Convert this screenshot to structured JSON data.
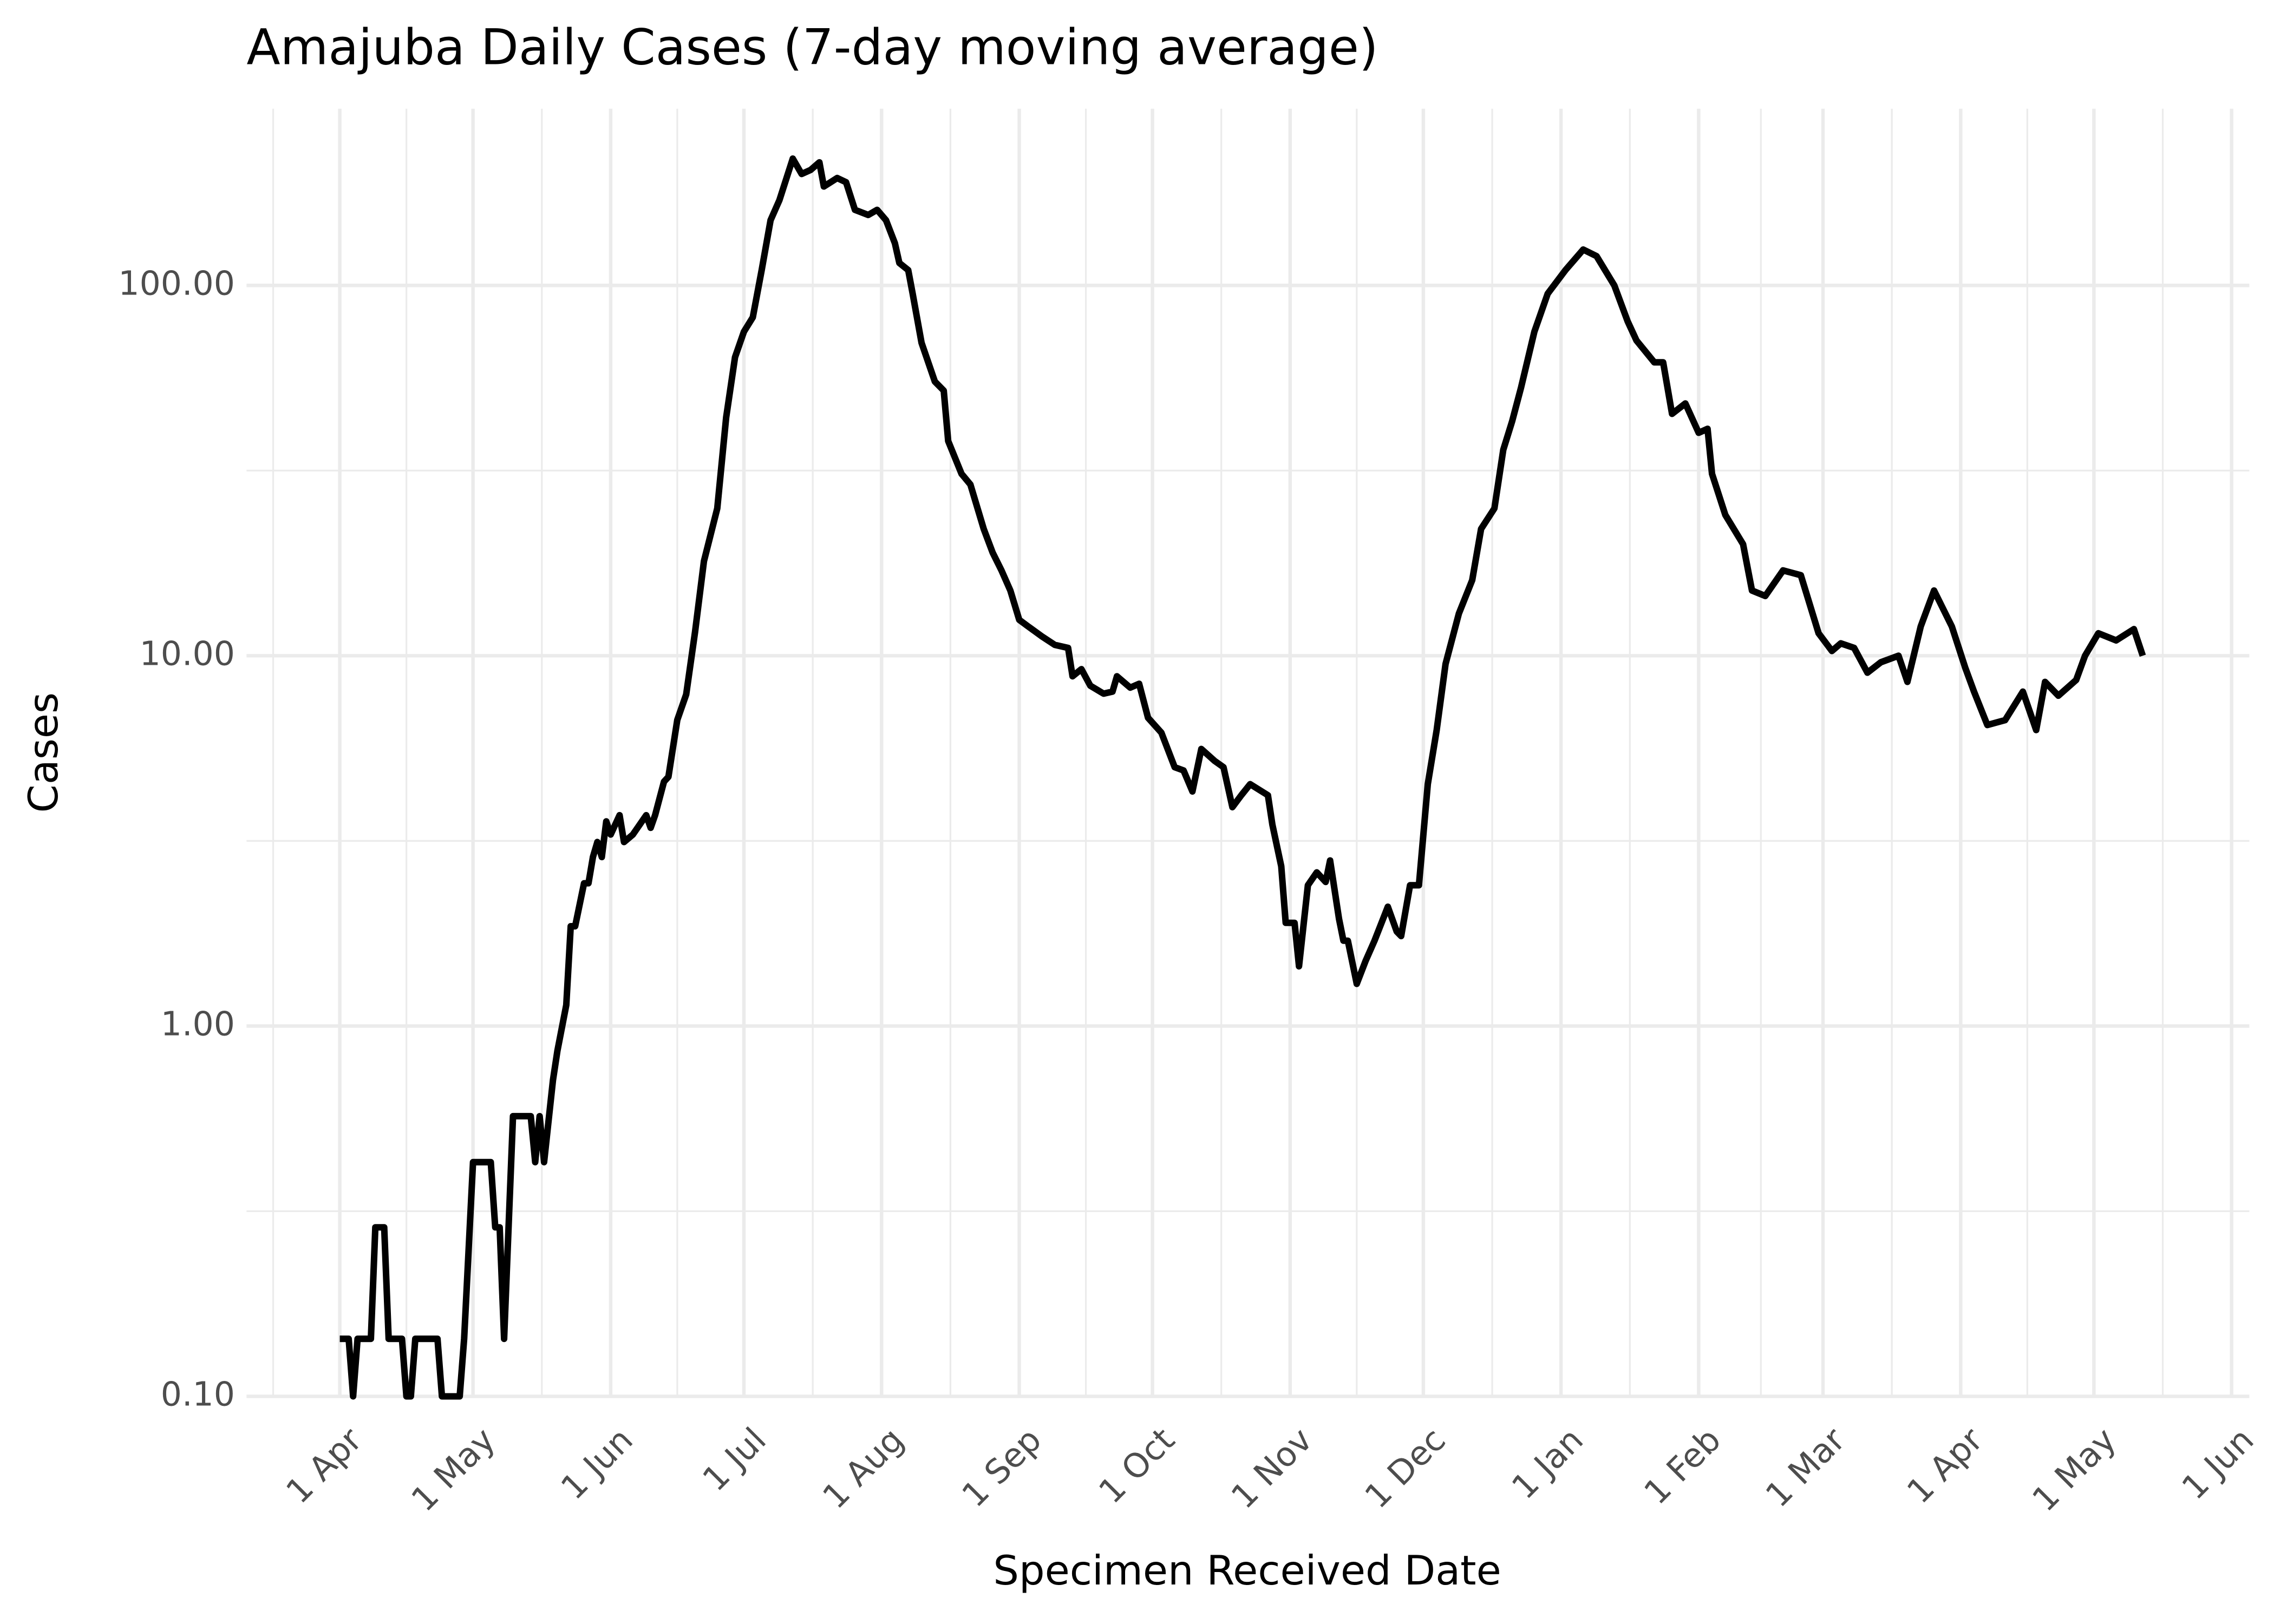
{
  "chart_data": {
    "type": "line",
    "title": "Amajuba Daily Cases (7-day moving average)",
    "x_label": "Specimen Received Date",
    "y_label": "Cases",
    "log_y": true,
    "grid": true,
    "color": "#000000",
    "xlim": [
      -21,
      430
    ],
    "ylim": [
      0.1,
      300
    ],
    "xticks": [
      {
        "value": 0,
        "label": "1 Apr"
      },
      {
        "value": 30,
        "label": "1 May"
      },
      {
        "value": 61,
        "label": "1 Jun"
      },
      {
        "value": 91,
        "label": "1 Jul"
      },
      {
        "value": 122,
        "label": "1 Aug"
      },
      {
        "value": 153,
        "label": "1 Sep"
      },
      {
        "value": 183,
        "label": "1 Oct"
      },
      {
        "value": 214,
        "label": "1 Nov"
      },
      {
        "value": 244,
        "label": "1 Dec"
      },
      {
        "value": 275,
        "label": "1 Jan"
      },
      {
        "value": 306,
        "label": "1 Feb"
      },
      {
        "value": 334,
        "label": "1 Mar"
      },
      {
        "value": 365,
        "label": "1 Apr"
      },
      {
        "value": 395,
        "label": "1 May"
      },
      {
        "value": 426,
        "label": "1 Jun"
      }
    ],
    "yticks": [
      {
        "value": 0.1,
        "label": "0.10"
      },
      {
        "value": 1,
        "label": "1.00"
      },
      {
        "value": 10,
        "label": "10.00"
      },
      {
        "value": 100,
        "label": "100.00"
      }
    ],
    "x": [
      0,
      2,
      3,
      4,
      7,
      8,
      10,
      11,
      14,
      15,
      16,
      17,
      22,
      23,
      27,
      28,
      30,
      34,
      35,
      36,
      37,
      39,
      43,
      44,
      45,
      46,
      48,
      49,
      51,
      52,
      53,
      55,
      56,
      57,
      58,
      59,
      60,
      61,
      63,
      64,
      66,
      69,
      70,
      71,
      73,
      74,
      76,
      78,
      80,
      82,
      85,
      87,
      89,
      91,
      93,
      95,
      97,
      99,
      102,
      104,
      106,
      108,
      109,
      112,
      114,
      116,
      119,
      121,
      123,
      125,
      126,
      128,
      129,
      131,
      134,
      136,
      137,
      140,
      142,
      145,
      147,
      149,
      151,
      153,
      155,
      158,
      161,
      164,
      165,
      167,
      169,
      172,
      174,
      175,
      178,
      180,
      182,
      185,
      188,
      190,
      192,
      194,
      197,
      199,
      201,
      203,
      205,
      209,
      210,
      212,
      213,
      215,
      216,
      218,
      220,
      222,
      223,
      225,
      226,
      227,
      229,
      231,
      233,
      236,
      238,
      239,
      241,
      243,
      245,
      247,
      249,
      252,
      255,
      257,
      260,
      262,
      264,
      266,
      269,
      272,
      276,
      280,
      283,
      287,
      290,
      292,
      296,
      298,
      300,
      303,
      306,
      308,
      309,
      312,
      316,
      318,
      321,
      325,
      329,
      333,
      336,
      338,
      341,
      344,
      347,
      351,
      353,
      356,
      359,
      363,
      366,
      368,
      371,
      375,
      379,
      382,
      384,
      387,
      391,
      393,
      396,
      400,
      404,
      406
    ],
    "values": [
      0.143,
      0.143,
      0.1,
      0.143,
      0.143,
      0.286,
      0.286,
      0.143,
      0.143,
      0.1,
      0.1,
      0.143,
      0.143,
      0.1,
      0.1,
      0.143,
      0.429,
      0.429,
      0.286,
      0.286,
      0.143,
      0.571,
      0.571,
      0.429,
      0.571,
      0.429,
      0.714,
      0.857,
      1.14,
      1.86,
      1.86,
      2.43,
      2.43,
      2.86,
      3.14,
      2.86,
      3.57,
      3.29,
      3.71,
      3.14,
      3.29,
      3.71,
      3.43,
      3.71,
      4.57,
      4.71,
      6.71,
      7.86,
      11.6,
      18,
      25,
      44,
      64,
      75,
      82,
      110,
      150,
      170,
      220,
      200,
      205,
      215,
      185,
      195,
      190,
      160,
      155,
      160,
      150,
      130,
      115,
      110,
      95,
      70,
      55,
      52,
      38,
      31,
      29,
      22,
      19,
      17,
      15,
      12.5,
      12,
      11.3,
      10.7,
      10.5,
      8.8,
      9.2,
      8.3,
      7.9,
      8,
      8.8,
      8.2,
      8.4,
      6.8,
      6.2,
      5,
      4.9,
      4.3,
      5.6,
      5.2,
      5,
      3.9,
      4.2,
      4.5,
      4.2,
      3.5,
      2.7,
      1.9,
      1.9,
      1.45,
      2.4,
      2.6,
      2.45,
      2.8,
      1.95,
      1.7,
      1.7,
      1.3,
      1.5,
      1.7,
      2.1,
      1.8,
      1.75,
      2.4,
      2.4,
      4.5,
      6.3,
      9.5,
      13,
      16,
      22,
      25,
      36,
      43,
      53,
      75,
      95,
      110,
      125,
      120,
      100,
      80,
      71,
      62,
      62,
      45,
      48,
      40,
      41,
      31,
      24,
      20,
      15,
      14.5,
      17,
      16.5,
      11.5,
      10.3,
      10.8,
      10.5,
      9,
      9.6,
      10,
      8.5,
      12,
      15,
      12,
      9.3,
      8,
      6.5,
      6.7,
      8,
      6.3,
      8.5,
      7.8,
      8.6,
      10,
      11.5,
      11,
      11.8,
      10
    ]
  }
}
